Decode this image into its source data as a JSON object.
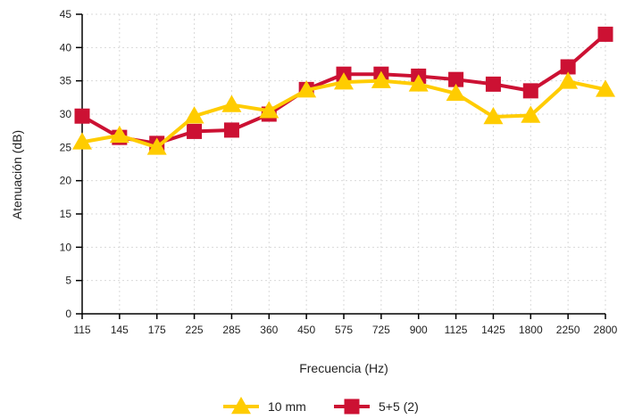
{
  "chart_data": {
    "type": "line",
    "title": "",
    "xlabel": "Frecuencia (Hz)",
    "ylabel": "Atenuación (dB)",
    "categories": [
      "115",
      "145",
      "175",
      "225",
      "285",
      "360",
      "450",
      "575",
      "725",
      "900",
      "1125",
      "1425",
      "1800",
      "2250",
      "2800"
    ],
    "ylim": [
      0,
      45
    ],
    "yticks": [
      0,
      5,
      10,
      15,
      20,
      25,
      30,
      35,
      40,
      45
    ],
    "grid": true,
    "legend_position": "bottom",
    "series": [
      {
        "name": "10 mm",
        "marker": "triangle",
        "color": "#FFCC00",
        "values": [
          25.8,
          26.8,
          25.0,
          29.7,
          31.4,
          30.5,
          33.6,
          34.8,
          35.0,
          34.5,
          33.1,
          29.6,
          29.8,
          34.9,
          33.7
        ]
      },
      {
        "name": "5+5 (2)",
        "marker": "square",
        "color": "#CC1133",
        "values": [
          29.7,
          26.5,
          25.6,
          27.4,
          27.6,
          30.0,
          33.7,
          36.0,
          36.0,
          35.7,
          35.2,
          34.5,
          33.5,
          37.1,
          42.0
        ]
      }
    ]
  }
}
